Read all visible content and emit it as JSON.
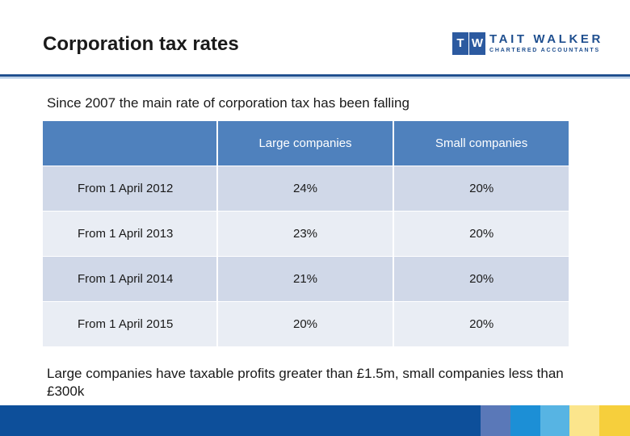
{
  "header": {
    "title": "Corporation tax rates",
    "logo": {
      "mark_t": "T",
      "mark_w": "W",
      "name": "TAIT WALKER",
      "tagline": "CHARTERED ACCOUNTANTS"
    }
  },
  "intro_text": "Since 2007 the main rate of corporation tax has been falling",
  "table": {
    "columns": [
      "",
      "Large companies",
      "Small companies"
    ],
    "rows": [
      {
        "period": "From 1 April 2012",
        "large": "24%",
        "small": "20%"
      },
      {
        "period": "From 1 April 2013",
        "large": "23%",
        "small": "20%"
      },
      {
        "period": "From 1 April 2014",
        "large": "21%",
        "small": "20%"
      },
      {
        "period": "From 1 April 2015",
        "large": "20%",
        "small": "20%"
      }
    ]
  },
  "footnote": "Large companies have taxable profits greater than £1.5m, small companies less than £300k",
  "colors": {
    "accent": "#1f4f8f",
    "table_header": "#4f81bd",
    "row_dark": "#d0d8e8",
    "row_light": "#e9edf4",
    "footer_segments": [
      "#0d4f9a",
      "#5a78b8",
      "#1c8fd6",
      "#57b4e3",
      "#a9d6ec",
      "#fbe58c",
      "#f6cf3c"
    ]
  }
}
